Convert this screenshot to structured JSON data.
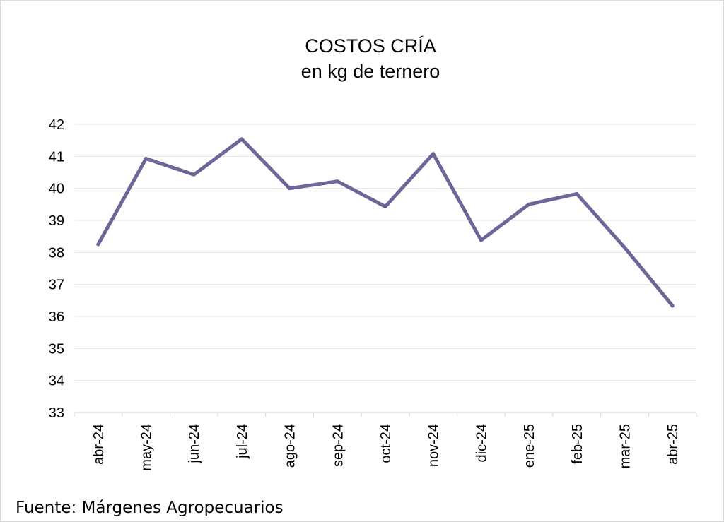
{
  "chart_data": {
    "type": "line",
    "title": "COSTOS CRÍA",
    "subtitle": "en kg de ternero",
    "categories": [
      "abr-24",
      "may-24",
      "jun-24",
      "jul-24",
      "ago-24",
      "sep-24",
      "oct-24",
      "nov-24",
      "dic-24",
      "ene-25",
      "feb-25",
      "mar-25",
      "abr-25"
    ],
    "series": [
      {
        "values": [
          38.25,
          40.93,
          40.43,
          41.54,
          40.0,
          40.22,
          39.43,
          41.08,
          38.38,
          39.5,
          39.83,
          38.15,
          36.33
        ]
      }
    ],
    "ylim": [
      33,
      42
    ],
    "yticks": [
      33,
      34,
      35,
      36,
      37,
      38,
      39,
      40,
      41,
      42
    ],
    "grid": true,
    "legend": "none",
    "colors": {
      "line": "#6b6899",
      "grid": "#e6e6e6",
      "axis": "#d0d0d0"
    }
  },
  "footer": {
    "source": "Fuente: Márgenes Agropecuarios"
  }
}
